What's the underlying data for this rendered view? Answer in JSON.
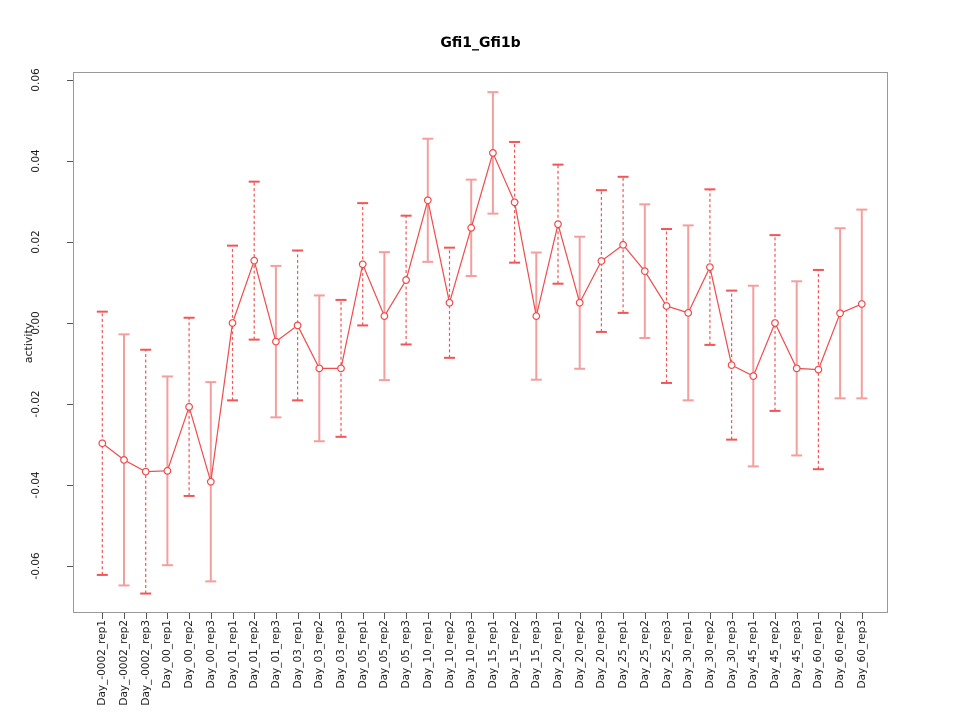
{
  "title": "Gfi1_Gfi1b",
  "axis": {
    "y_label": "activity"
  },
  "chart_data": {
    "type": "line",
    "title": "Gfi1_Gfi1b",
    "xlabel": "",
    "ylabel": "activity",
    "legend": "none",
    "grid": "vertical dotted gridlines at each category; dotted horizontal line at y=0",
    "point_style": "open-circle with symmetric error bars",
    "ylim": [
      -0.0684,
      0.0622
    ],
    "yticks": [
      -0.06,
      -0.04,
      -0.02,
      0.0,
      0.02,
      0.04,
      0.06
    ],
    "ytick_labels": [
      "-0.06",
      "-0.04",
      "-0.02",
      "0.00",
      "0.02",
      "0.04",
      "0.06"
    ],
    "categories": [
      "Day_-0002_rep1",
      "Day_-0002_rep2",
      "Day_-0002_rep3",
      "Day_00_rep1",
      "Day_00_rep2",
      "Day_00_rep3",
      "Day_01_rep1",
      "Day_01_rep2",
      "Day_01_rep3",
      "Day_03_rep1",
      "Day_03_rep2",
      "Day_03_rep3",
      "Day_05_rep1",
      "Day_05_rep2",
      "Day_05_rep3",
      "Day_10_rep1",
      "Day_10_rep2",
      "Day_10_rep3",
      "Day_15_rep1",
      "Day_15_rep2",
      "Day_15_rep3",
      "Day_20_rep1",
      "Day_20_rep2",
      "Day_20_rep3",
      "Day_25_rep1",
      "Day_25_rep2",
      "Day_25_rep3",
      "Day_30_rep1",
      "Day_30_rep2",
      "Day_30_rep3",
      "Day_45_rep1",
      "Day_45_rep2",
      "Day_45_rep3",
      "Day_60_rep1",
      "Day_60_rep2",
      "Day_60_rep3"
    ],
    "series": [
      {
        "name": "activity",
        "values": [
          -0.0297,
          -0.0338,
          -0.0367,
          -0.0365,
          -0.0207,
          -0.0392,
          0.0,
          0.0154,
          -0.0046,
          -0.0006,
          -0.0112,
          -0.0112,
          0.0145,
          0.0017,
          0.0106,
          0.0303,
          0.005,
          0.0235,
          0.042,
          0.0298,
          0.0017,
          0.0244,
          0.005,
          0.0153,
          0.0193,
          0.0128,
          0.0042,
          0.0025,
          0.0138,
          -0.0104,
          -0.0131,
          0.0,
          -0.0112,
          -0.0115,
          0.0024,
          0.0047
        ],
        "stderr": [
          0.0325,
          0.031,
          0.0301,
          0.0233,
          0.022,
          0.0246,
          0.0191,
          0.0195,
          0.0187,
          0.0185,
          0.018,
          0.0169,
          0.0151,
          0.0158,
          0.0159,
          0.0152,
          0.0136,
          0.0119,
          0.015,
          0.0149,
          0.0157,
          0.0147,
          0.0163,
          0.0175,
          0.0168,
          0.0165,
          0.019,
          0.0216,
          0.0192,
          0.0184,
          0.0223,
          0.0217,
          0.0215,
          0.0246,
          0.021,
          0.0233
        ]
      }
    ],
    "bar_styles": [
      "dashed",
      "solid",
      "dashed",
      "solid",
      "dashed",
      "solid",
      "dashed",
      "dashed",
      "solid",
      "dashed",
      "solid",
      "dashed",
      "dashed",
      "solid",
      "dashed",
      "solid",
      "dashed",
      "solid",
      "solid",
      "dashed",
      "solid",
      "dashed",
      "solid",
      "dashed",
      "dashed",
      "solid",
      "dashed",
      "solid",
      "dashed",
      "dashed",
      "solid",
      "dashed",
      "solid",
      "dashed",
      "solid",
      "solid"
    ],
    "colors": {
      "line": "#f04b4b",
      "point": "#f04b4b",
      "errorbar_dashed": "#f15555",
      "errorbar_solid": "#f59e9e",
      "grid": "#d9d9d9",
      "zero_line": "#cfcfcf",
      "box": "#999999",
      "tick": "#555555",
      "text": "#1b1b1b",
      "background": "#ffffff"
    }
  }
}
